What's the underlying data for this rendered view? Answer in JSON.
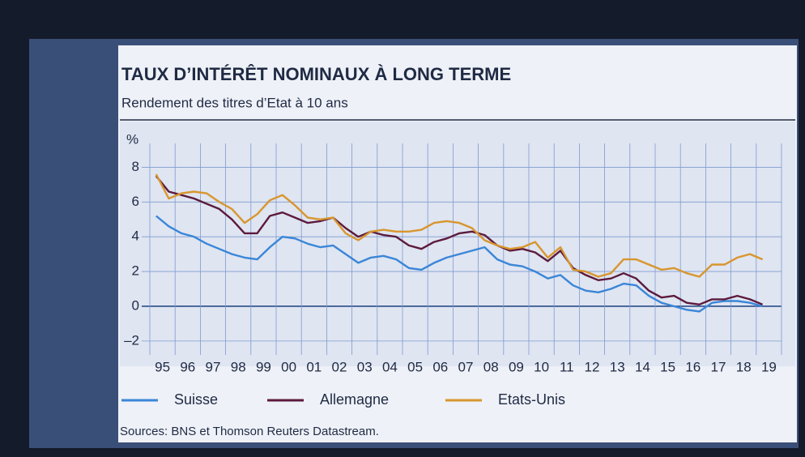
{
  "chart_data": {
    "type": "line",
    "title": "TAUX D’INTÉRÊT NOMINAUX À LONG TERME",
    "subtitle": "Rendement des titres d’Etat à 10 ans",
    "y_label": "%",
    "source": "Sources: BNS et Thomson Reuters Datastream.",
    "categories": [
      "95",
      null,
      "96",
      null,
      "97",
      null,
      "98",
      null,
      "99",
      null,
      "00",
      null,
      "01",
      null,
      "02",
      null,
      "03",
      null,
      "04",
      null,
      "05",
      null,
      "06",
      null,
      "07",
      null,
      "08",
      null,
      "09",
      null,
      "10",
      null,
      "11",
      null,
      "12",
      null,
      "13",
      null,
      "14",
      null,
      "15",
      null,
      "16",
      null,
      "17",
      null,
      "18",
      null,
      "19",
      null
    ],
    "series": [
      {
        "name": "Suisse",
        "color": "#3a86d8",
        "values": [
          5.2,
          4.6,
          4.2,
          4.0,
          3.6,
          3.3,
          3.0,
          2.8,
          2.7,
          3.4,
          4.0,
          3.9,
          3.6,
          3.4,
          3.5,
          3.0,
          2.5,
          2.8,
          2.9,
          2.7,
          2.2,
          2.1,
          2.5,
          2.8,
          3.0,
          3.2,
          3.4,
          2.7,
          2.4,
          2.3,
          2.0,
          1.6,
          1.8,
          1.2,
          0.9,
          0.8,
          1.0,
          1.3,
          1.2,
          0.6,
          0.2,
          0.0,
          -0.2,
          -0.3,
          0.2,
          0.3,
          0.3,
          0.2,
          0.0,
          null
        ]
      },
      {
        "name": "Allemagne",
        "color": "#5c1a3c",
        "values": [
          7.5,
          6.6,
          6.4,
          6.2,
          5.9,
          5.6,
          5.0,
          4.2,
          4.2,
          5.2,
          5.4,
          5.1,
          4.8,
          4.9,
          5.1,
          4.5,
          4.0,
          4.3,
          4.1,
          4.0,
          3.5,
          3.3,
          3.7,
          3.9,
          4.2,
          4.3,
          4.1,
          3.5,
          3.2,
          3.3,
          3.1,
          2.6,
          3.2,
          2.2,
          1.8,
          1.5,
          1.6,
          1.9,
          1.6,
          0.9,
          0.5,
          0.6,
          0.2,
          0.1,
          0.4,
          0.4,
          0.6,
          0.4,
          0.1,
          null
        ]
      },
      {
        "name": "Etats-Unis",
        "color": "#d8962e",
        "values": [
          7.6,
          6.2,
          6.5,
          6.6,
          6.5,
          6.0,
          5.6,
          4.8,
          5.3,
          6.1,
          6.4,
          5.8,
          5.1,
          5.0,
          5.1,
          4.2,
          3.8,
          4.3,
          4.4,
          4.3,
          4.3,
          4.4,
          4.8,
          4.9,
          4.8,
          4.5,
          3.8,
          3.5,
          3.3,
          3.4,
          3.7,
          2.8,
          3.4,
          2.1,
          2.0,
          1.7,
          1.9,
          2.7,
          2.7,
          2.4,
          2.1,
          2.2,
          1.9,
          1.7,
          2.4,
          2.4,
          2.8,
          3.0,
          2.7,
          null
        ]
      }
    ],
    "ylim": [
      -2.8,
      9
    ],
    "yticks": [
      {
        "value": -2,
        "label": "–2"
      },
      0,
      2,
      4,
      6,
      8
    ],
    "grid": true
  }
}
